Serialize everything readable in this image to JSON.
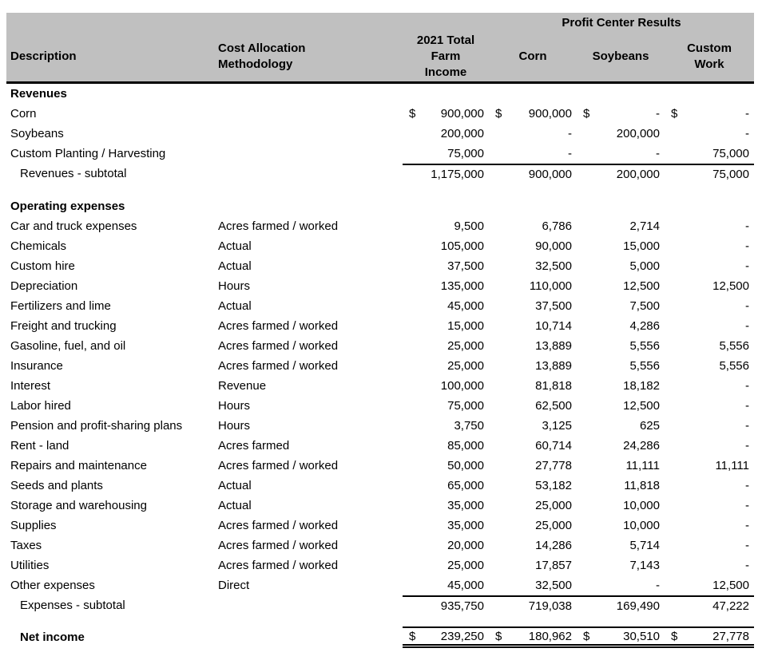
{
  "table": {
    "group_header": "Profit Center Results",
    "currency_symbol": "$",
    "columns": {
      "description": "Description",
      "methodology": "Cost Allocation\nMethodology",
      "total": "2021 Total\nFarm\nIncome",
      "corn": "Corn",
      "soybeans": "Soybeans",
      "custom_work": "Custom\nWork"
    },
    "rows": [
      {
        "type": "section",
        "label": "Revenues"
      },
      {
        "type": "item",
        "label": "Corn",
        "method": "",
        "dollar": true,
        "values": [
          "900,000",
          "900,000",
          "-",
          "-"
        ]
      },
      {
        "type": "item",
        "label": "Soybeans",
        "method": "",
        "values": [
          "200,000",
          "-",
          "200,000",
          "-"
        ]
      },
      {
        "type": "item",
        "label": "Custom Planting / Harvesting",
        "method": "",
        "values": [
          "75,000",
          "-",
          "-",
          "75,000"
        ]
      },
      {
        "type": "subtotal",
        "label": "Revenues - subtotal",
        "method": "",
        "values": [
          "1,175,000",
          "900,000",
          "200,000",
          "75,000"
        ]
      },
      {
        "type": "spacer"
      },
      {
        "type": "section",
        "label": "Operating expenses"
      },
      {
        "type": "item",
        "label": "Car and truck expenses",
        "method": "Acres farmed / worked",
        "values": [
          "9,500",
          "6,786",
          "2,714",
          "-"
        ]
      },
      {
        "type": "item",
        "label": "Chemicals",
        "method": "Actual",
        "values": [
          "105,000",
          "90,000",
          "15,000",
          "-"
        ]
      },
      {
        "type": "item",
        "label": "Custom hire",
        "method": "Actual",
        "values": [
          "37,500",
          "32,500",
          "5,000",
          "-"
        ]
      },
      {
        "type": "item",
        "label": "Depreciation",
        "method": "Hours",
        "values": [
          "135,000",
          "110,000",
          "12,500",
          "12,500"
        ]
      },
      {
        "type": "item",
        "label": "Fertilizers and lime",
        "method": "Actual",
        "values": [
          "45,000",
          "37,500",
          "7,500",
          "-"
        ]
      },
      {
        "type": "item",
        "label": "Freight and trucking",
        "method": "Acres farmed / worked",
        "values": [
          "15,000",
          "10,714",
          "4,286",
          "-"
        ]
      },
      {
        "type": "item",
        "label": "Gasoline, fuel, and oil",
        "method": "Acres farmed / worked",
        "values": [
          "25,000",
          "13,889",
          "5,556",
          "5,556"
        ]
      },
      {
        "type": "item",
        "label": "Insurance",
        "method": "Acres farmed / worked",
        "values": [
          "25,000",
          "13,889",
          "5,556",
          "5,556"
        ]
      },
      {
        "type": "item",
        "label": "Interest",
        "method": "Revenue",
        "values": [
          "100,000",
          "81,818",
          "18,182",
          "-"
        ]
      },
      {
        "type": "item",
        "label": "Labor hired",
        "method": "Hours",
        "values": [
          "75,000",
          "62,500",
          "12,500",
          "-"
        ]
      },
      {
        "type": "item",
        "label": "Pension and profit-sharing plans",
        "method": "Hours",
        "values": [
          "3,750",
          "3,125",
          "625",
          "-"
        ]
      },
      {
        "type": "item",
        "label": "Rent - land",
        "method": "Acres farmed",
        "values": [
          "85,000",
          "60,714",
          "24,286",
          "-"
        ]
      },
      {
        "type": "item",
        "label": "Repairs and maintenance",
        "method": "Acres farmed / worked",
        "values": [
          "50,000",
          "27,778",
          "11,111",
          "11,111"
        ]
      },
      {
        "type": "item",
        "label": "Seeds and plants",
        "method": "Actual",
        "values": [
          "65,000",
          "53,182",
          "11,818",
          "-"
        ]
      },
      {
        "type": "item",
        "label": "Storage and warehousing",
        "method": "Actual",
        "values": [
          "35,000",
          "25,000",
          "10,000",
          "-"
        ]
      },
      {
        "type": "item",
        "label": "Supplies",
        "method": "Acres farmed / worked",
        "values": [
          "35,000",
          "25,000",
          "10,000",
          "-"
        ]
      },
      {
        "type": "item",
        "label": "Taxes",
        "method": "Acres farmed / worked",
        "values": [
          "20,000",
          "14,286",
          "5,714",
          "-"
        ]
      },
      {
        "type": "item",
        "label": "Utilities",
        "method": "Acres farmed / worked",
        "values": [
          "25,000",
          "17,857",
          "7,143",
          "-"
        ]
      },
      {
        "type": "item",
        "label": "Other expenses",
        "method": "Direct",
        "values": [
          "45,000",
          "32,500",
          "-",
          "12,500"
        ]
      },
      {
        "type": "subtotal",
        "label": "Expenses - subtotal",
        "method": "",
        "values": [
          "935,750",
          "719,038",
          "169,490",
          "47,222"
        ]
      },
      {
        "type": "spacer_sm"
      },
      {
        "type": "net",
        "label": "Net income",
        "method": "",
        "dollar": true,
        "values": [
          "239,250",
          "180,962",
          "30,510",
          "27,778"
        ]
      }
    ]
  },
  "colors": {
    "header_background": "#c0c0c0",
    "text": "#000000",
    "rule_lines": "#000000"
  }
}
